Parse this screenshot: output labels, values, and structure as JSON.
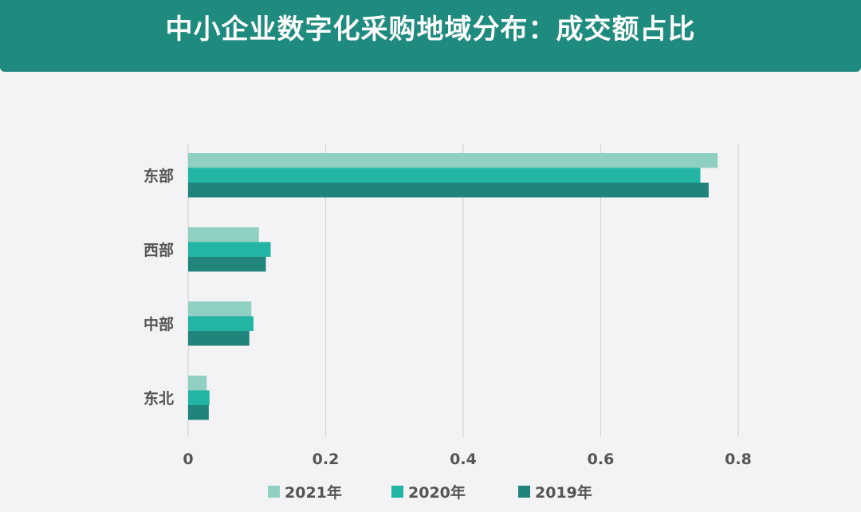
{
  "header": {
    "title": "中小企业数字化采购地域分布：成交额占比"
  },
  "chart_data": {
    "type": "bar",
    "orientation": "horizontal",
    "categories": [
      "东部",
      "西部",
      "中部",
      "东北"
    ],
    "series": [
      {
        "name": "2021年",
        "color": "#8fd0c3",
        "values": [
          0.77,
          0.103,
          0.092,
          0.027
        ]
      },
      {
        "name": "2020年",
        "color": "#22b5a4",
        "values": [
          0.745,
          0.12,
          0.095,
          0.031
        ]
      },
      {
        "name": "2019年",
        "color": "#20847b",
        "values": [
          0.757,
          0.113,
          0.089,
          0.03
        ]
      }
    ],
    "xlim": [
      0,
      0.8
    ],
    "xticks": [
      "0",
      "0.2",
      "0.4",
      "0.6",
      "0.8"
    ],
    "xlabel": "",
    "ylabel": "",
    "grid": true,
    "legend_position": "bottom"
  }
}
